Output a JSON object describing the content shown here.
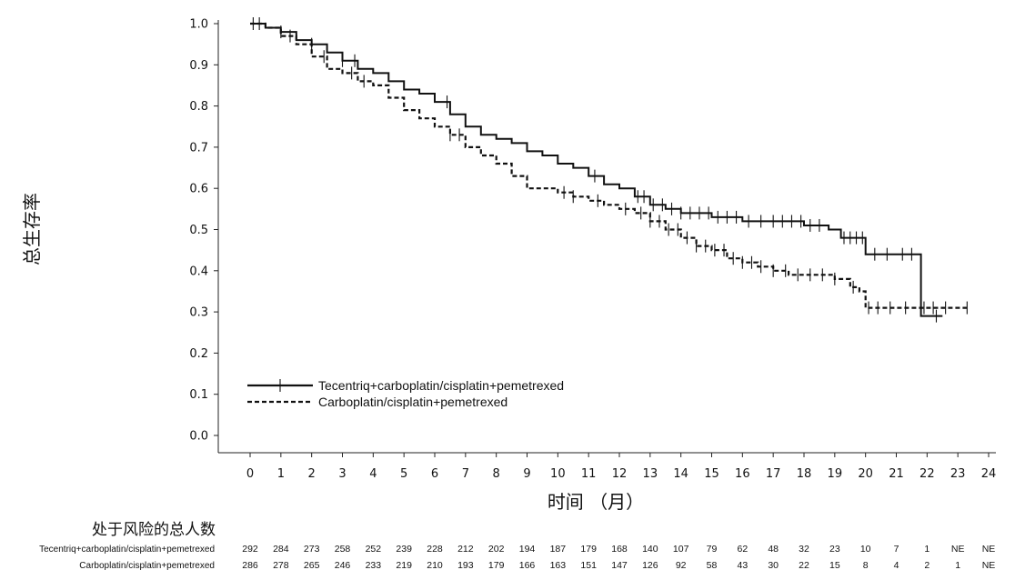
{
  "chart_data": {
    "type": "line",
    "title": "",
    "xlabel": "时间 （月）",
    "ylabel": "总生存率",
    "xlim": [
      0,
      24
    ],
    "ylim": [
      0,
      1.0
    ],
    "x_ticks": [
      "0",
      "1",
      "2",
      "3",
      "4",
      "5",
      "6",
      "7",
      "8",
      "9",
      "10",
      "11",
      "12",
      "13",
      "14",
      "15",
      "16",
      "17",
      "18",
      "19",
      "20",
      "21",
      "22",
      "23",
      "24"
    ],
    "y_ticks": [
      "0.0",
      "0.1",
      "0.2",
      "0.3",
      "0.4",
      "0.5",
      "0.6",
      "0.7",
      "0.8",
      "0.9",
      "1.0"
    ],
    "legend_position": "lower-left",
    "series": [
      {
        "name": "Tecentriq+carboplatin/cisplatin+pemetrexed",
        "style": "solid",
        "color": "#111111",
        "x": [
          0,
          0.5,
          1.0,
          1.5,
          2.0,
          2.5,
          3.0,
          3.5,
          4.0,
          4.5,
          5.0,
          5.5,
          6.0,
          6.5,
          7.0,
          7.5,
          8.0,
          8.5,
          9.0,
          9.5,
          10.0,
          10.5,
          11.0,
          11.5,
          12.0,
          12.5,
          13.0,
          13.5,
          14.0,
          15.0,
          16.0,
          17.0,
          18.0,
          18.8,
          19.2,
          19.8,
          20.0,
          21.0,
          21.6,
          21.8,
          22.5
        ],
        "y": [
          1.0,
          0.99,
          0.98,
          0.96,
          0.95,
          0.93,
          0.91,
          0.89,
          0.88,
          0.86,
          0.84,
          0.83,
          0.81,
          0.78,
          0.75,
          0.73,
          0.72,
          0.71,
          0.69,
          0.68,
          0.66,
          0.65,
          0.63,
          0.61,
          0.6,
          0.58,
          0.56,
          0.55,
          0.54,
          0.53,
          0.52,
          0.52,
          0.51,
          0.5,
          0.48,
          0.48,
          0.44,
          0.44,
          0.44,
          0.29,
          0.29
        ],
        "censor_x": [
          0.1,
          1.0,
          2.0,
          3.0,
          3.4,
          6.4,
          11.2,
          12.6,
          12.8,
          13.1,
          13.4,
          13.7,
          14.0,
          14.3,
          14.6,
          14.9,
          15.2,
          15.5,
          15.8,
          16.2,
          16.6,
          17.0,
          17.3,
          17.6,
          17.9,
          18.2,
          18.5,
          19.3,
          19.5,
          19.7,
          19.9,
          20.3,
          20.7,
          21.2,
          21.5,
          22.3
        ]
      },
      {
        "name": "Carboplatin/cisplatin+pemetrexed",
        "style": "dashed",
        "color": "#111111",
        "x": [
          0,
          0.5,
          1.0,
          1.5,
          2.0,
          2.5,
          3.0,
          3.5,
          4.0,
          4.5,
          5.0,
          5.5,
          6.0,
          6.5,
          7.0,
          7.5,
          8.0,
          8.5,
          9.0,
          9.5,
          10.0,
          10.5,
          11.0,
          11.5,
          12.0,
          12.5,
          13.0,
          13.5,
          14.0,
          14.5,
          15.0,
          15.5,
          16.0,
          16.5,
          17.0,
          17.5,
          18.0,
          19.0,
          19.5,
          19.8,
          20.0,
          21.0,
          22.0,
          23.3
        ],
        "y": [
          1.0,
          0.99,
          0.97,
          0.95,
          0.92,
          0.89,
          0.88,
          0.86,
          0.85,
          0.82,
          0.79,
          0.77,
          0.75,
          0.73,
          0.7,
          0.68,
          0.66,
          0.63,
          0.6,
          0.6,
          0.59,
          0.58,
          0.57,
          0.56,
          0.55,
          0.54,
          0.52,
          0.5,
          0.48,
          0.46,
          0.45,
          0.43,
          0.42,
          0.41,
          0.4,
          0.39,
          0.39,
          0.38,
          0.36,
          0.35,
          0.31,
          0.31,
          0.31,
          0.31
        ],
        "censor_x": [
          0.3,
          1.3,
          2.4,
          3.3,
          3.7,
          6.5,
          6.8,
          10.2,
          10.5,
          11.3,
          12.2,
          12.7,
          13.0,
          13.3,
          13.6,
          13.9,
          14.2,
          14.5,
          14.8,
          15.1,
          15.4,
          15.7,
          16.0,
          16.3,
          16.6,
          17.0,
          17.4,
          17.8,
          18.2,
          18.6,
          19.0,
          19.6,
          20.1,
          20.4,
          20.8,
          21.3,
          21.9,
          22.2,
          22.6,
          23.3
        ]
      }
    ]
  },
  "risk_table": {
    "title": "处于风险的总人数",
    "rows": [
      {
        "label": "Tecentriq+carboplatin/cisplatin+pemetrexed",
        "values": [
          "292",
          "284",
          "273",
          "258",
          "252",
          "239",
          "228",
          "212",
          "202",
          "194",
          "187",
          "179",
          "168",
          "140",
          "107",
          "79",
          "62",
          "48",
          "32",
          "23",
          "10",
          "7",
          "1",
          "NE",
          "NE"
        ]
      },
      {
        "label": "Carboplatin/cisplatin+pemetrexed",
        "values": [
          "286",
          "278",
          "265",
          "246",
          "233",
          "219",
          "210",
          "193",
          "179",
          "166",
          "163",
          "151",
          "147",
          "126",
          "92",
          "58",
          "43",
          "30",
          "22",
          "15",
          "8",
          "4",
          "2",
          "1",
          "NE"
        ]
      }
    ]
  }
}
